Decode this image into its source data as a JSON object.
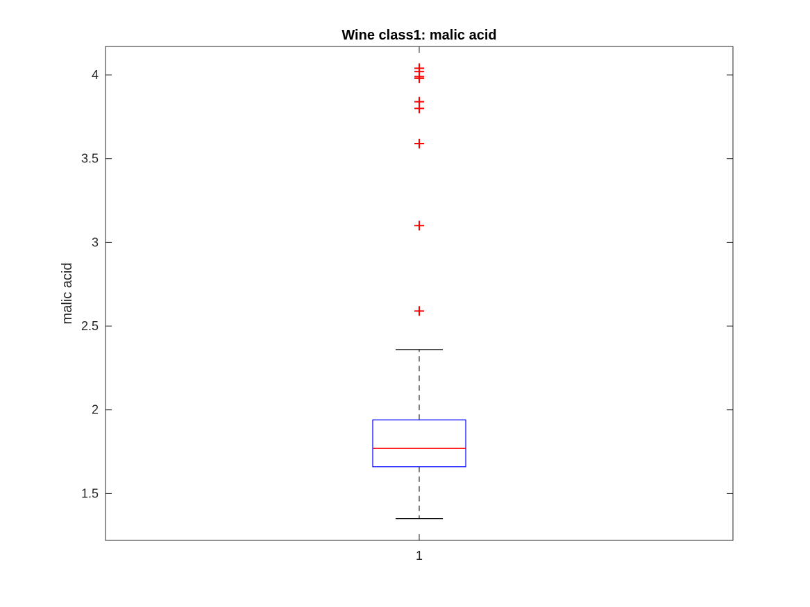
{
  "chart_data": {
    "type": "box",
    "title": "Wine class1: malic acid",
    "xlabel": "",
    "ylabel": "malic acid",
    "ylim": [
      1.22,
      4.17
    ],
    "y_ticks": [
      1.5,
      2,
      2.5,
      3,
      3.5,
      4
    ],
    "y_tick_labels": [
      "1.5",
      "2",
      "2.5",
      "3",
      "3.5",
      "4"
    ],
    "categories": [
      "1"
    ],
    "boxes": [
      {
        "category": "1",
        "whisker_low": 1.35,
        "q1": 1.66,
        "median": 1.77,
        "q3": 1.94,
        "whisker_high": 2.36,
        "outliers": [
          2.59,
          3.1,
          3.59,
          3.8,
          3.84,
          3.98,
          3.99,
          4.02,
          4.04
        ]
      }
    ],
    "grid": false,
    "colors": {
      "box": "#0000ff",
      "median": "#ff0000",
      "outlier": "#ff0000",
      "whisker": "#000000",
      "axes": "#262626"
    }
  }
}
